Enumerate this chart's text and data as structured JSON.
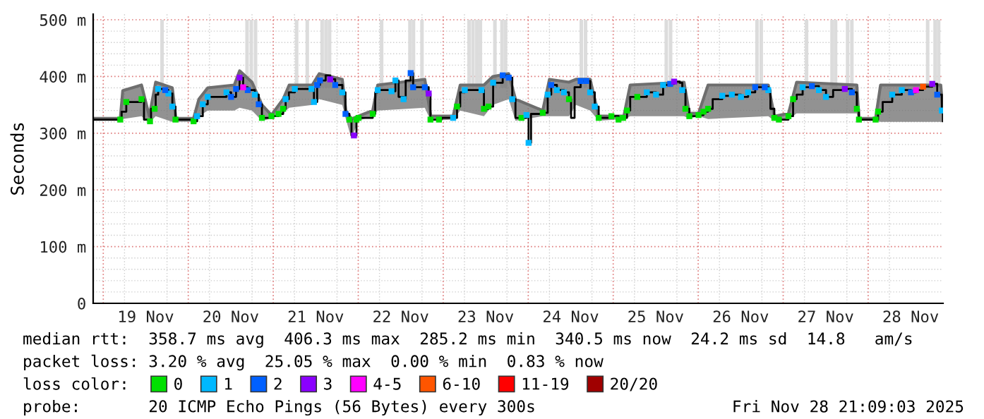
{
  "chart_data": {
    "type": "step",
    "ylabel": "Seconds",
    "legend_title": "loss color:",
    "legend": "bottom",
    "grid": true,
    "line_style": "solid",
    "xlim": [
      "2025-11-18T21:09",
      "2025-11-28T21:09"
    ],
    "ylim": [
      0,
      510
    ],
    "xticks": [
      {
        "value": "2025-11-19T00:00",
        "label": null
      },
      {
        "value": "2025-11-19T12:00",
        "label": "19 Nov"
      },
      {
        "value": "2025-11-20T00:00",
        "label": null
      },
      {
        "value": "2025-11-20T12:00",
        "label": "20 Nov"
      },
      {
        "value": "2025-11-21T00:00",
        "label": null
      },
      {
        "value": "2025-11-21T12:00",
        "label": "21 Nov"
      },
      {
        "value": "2025-11-22T00:00",
        "label": null
      },
      {
        "value": "2025-11-22T12:00",
        "label": "22 Nov"
      },
      {
        "value": "2025-11-23T00:00",
        "label": null
      },
      {
        "value": "2025-11-23T12:00",
        "label": "23 Nov"
      },
      {
        "value": "2025-11-24T00:00",
        "label": null
      },
      {
        "value": "2025-11-24T12:00",
        "label": "24 Nov"
      },
      {
        "value": "2025-11-25T00:00",
        "label": null
      },
      {
        "value": "2025-11-25T12:00",
        "label": "25 Nov"
      },
      {
        "value": "2025-11-26T00:00",
        "label": null
      },
      {
        "value": "2025-11-26T12:00",
        "label": "26 Nov"
      },
      {
        "value": "2025-11-27T00:00",
        "label": null
      },
      {
        "value": "2025-11-27T12:00",
        "label": "27 Nov"
      },
      {
        "value": "2025-11-28T00:00",
        "label": null
      },
      {
        "value": "2025-11-28T12:00",
        "label": "28 Nov"
      }
    ],
    "yticks": [
      0,
      {
        "value": 100,
        "label": "100 m"
      },
      {
        "value": 200,
        "label": "200 m"
      },
      {
        "value": 300,
        "label": "300 m"
      },
      {
        "value": 400,
        "label": "400 m"
      },
      {
        "value": 500,
        "label": "500 m"
      }
    ],
    "annotations": [
      "median rtt:  358.7 ms avg  406.3 ms max  285.2 ms min  340.5 ms now  24.2 ms sd  14.8   am/s",
      "packet loss: 3.20 % avg  25.05 % max  0.00 % min  0.83 % now",
      "probe:       20 ICMP Echo Pings (56 Bytes) every 300s",
      "Fri Nov 28 21:09:03 2025"
    ],
    "series": [
      {
        "type": "bar",
        "color": "#dcdcdc",
        "x": [
          "2025-11-19T16:36",
          "2025-11-20T16:36",
          "2025-11-20T17:48",
          "2025-11-20T19:00",
          "2025-11-21T06:36",
          "2025-11-21T09:36",
          "2025-11-21T13:48",
          "2025-11-21T14:54",
          "2025-11-21T15:54",
          "2025-11-22T06:36",
          "2025-11-22T14:36",
          "2025-11-22T15:36",
          "2025-11-22T18:00",
          "2025-11-23T07:18",
          "2025-11-23T08:24",
          "2025-11-23T09:30",
          "2025-11-23T10:30",
          "2025-11-23T14:36",
          "2025-11-23T16:36",
          "2025-11-23T17:36",
          "2025-11-24T15:00",
          "2025-11-24T16:12",
          "2025-11-25T15:00",
          "2025-11-25T16:12",
          "2025-11-26T16:36",
          "2025-11-26T17:48",
          "2025-11-27T06:36",
          "2025-11-27T13:48",
          "2025-11-27T14:48",
          "2025-11-27T18:12",
          "2025-11-27T19:24",
          "2025-11-28T16:48",
          "2025-11-28T18:54",
          "2025-11-28T19:54"
        ],
        "base": [
          380,
          380,
          380,
          380,
          380,
          380,
          380,
          380,
          380,
          380,
          380,
          380,
          380,
          380,
          380,
          380,
          380,
          380,
          380,
          380,
          380,
          380,
          380,
          380,
          380,
          380,
          380,
          380,
          380,
          380,
          380,
          380,
          380,
          380
        ],
        "values": [
          120,
          120,
          120,
          120,
          120,
          120,
          120,
          120,
          120,
          120,
          120,
          120,
          120,
          120,
          120,
          120,
          120,
          120,
          120,
          120,
          120,
          120,
          120,
          120,
          120,
          120,
          120,
          120,
          120,
          120,
          120,
          120,
          120,
          120
        ]
      },
      {
        "type": "line",
        "color": "#6e6e6e",
        "x": [
          "2025-11-18T21:09",
          "2025-11-19T04:48",
          "2025-11-19T05:30",
          "2025-11-19T10:48",
          "2025-11-19T13:00",
          "2025-11-19T14:48",
          "2025-11-19T19:30",
          "2025-11-19T20:30",
          "2025-11-20T01:30",
          "2025-11-20T03:00",
          "2025-11-20T05:30",
          "2025-11-20T13:00",
          "2025-11-20T14:30",
          "2025-11-20T18:00",
          "2025-11-20T20:48",
          "2025-11-20T23:30",
          "2025-11-21T02:48",
          "2025-11-21T04:30",
          "2025-11-21T11:00",
          "2025-11-21T13:00",
          "2025-11-21T19:30",
          "2025-11-21T20:30",
          "2025-11-21T22:06",
          "2025-11-22T00:00",
          "2025-11-22T04:06",
          "2025-11-22T05:30",
          "2025-11-22T18:48",
          "2025-11-22T20:30",
          "2025-11-23T02:48",
          "2025-11-23T04:48",
          "2025-11-23T11:30",
          "2025-11-23T14:00",
          "2025-11-23T18:30",
          "2025-11-23T20:24",
          "2025-11-24T04:06",
          "2025-11-24T06:00",
          "2025-11-24T11:30",
          "2025-11-24T13:30",
          "2025-11-24T17:30",
          "2025-11-24T19:54",
          "2025-11-25T03:00",
          "2025-11-25T04:48",
          "2025-11-25T20:00",
          "2025-11-25T21:30",
          "2025-11-26T00:06",
          "2025-11-26T02:48",
          "2025-11-26T19:48",
          "2025-11-26T21:30",
          "2025-11-27T01:30",
          "2025-11-27T03:48",
          "2025-11-27T20:48",
          "2025-11-27T21:24",
          "2025-11-28T02:06",
          "2025-11-28T03:30",
          "2025-11-28T20:30",
          "2025-11-28T21:06"
        ],
        "lower": [
          322,
          322,
          325,
          330,
          318,
          330,
          320,
          320,
          320,
          330,
          340,
          340,
          345,
          340,
          322,
          326,
          335,
          345,
          350,
          360,
          350,
          325,
          290,
          322,
          330,
          340,
          345,
          322,
          324,
          340,
          330,
          350,
          360,
          322,
          330,
          330,
          330,
          350,
          340,
          322,
          325,
          330,
          330,
          326,
          330,
          325,
          330,
          322,
          325,
          335,
          335,
          322,
          322,
          320,
          320,
          320
        ],
        "values": [
          326,
          326,
          375,
          385,
          330,
          390,
          380,
          326,
          326,
          360,
          380,
          385,
          410,
          390,
          350,
          332,
          360,
          385,
          385,
          405,
          395,
          340,
          325,
          330,
          340,
          385,
          395,
          330,
          330,
          385,
          385,
          400,
          405,
          360,
          340,
          395,
          390,
          395,
          395,
          330,
          330,
          385,
          390,
          335,
          335,
          385,
          385,
          330,
          335,
          390,
          385,
          326,
          326,
          385,
          385,
          340
        ],
        "upper": [
          326,
          326,
          375,
          385,
          330,
          390,
          380,
          326,
          326,
          360,
          380,
          385,
          410,
          390,
          350,
          332,
          360,
          385,
          385,
          405,
          395,
          340,
          325,
          330,
          340,
          385,
          395,
          330,
          330,
          385,
          385,
          400,
          405,
          360,
          340,
          395,
          390,
          395,
          395,
          330,
          330,
          385,
          390,
          335,
          335,
          385,
          385,
          330,
          335,
          390,
          385,
          326,
          326,
          385,
          385,
          340
        ]
      },
      {
        "color": "#000000",
        "x": [
          "2025-11-18T21:09",
          "2025-11-19T04:48",
          "2025-11-19T05:12",
          "2025-11-19T06:06",
          "2025-11-19T06:30",
          "2025-11-19T10:48",
          "2025-11-19T11:30",
          "2025-11-19T13:12",
          "2025-11-19T13:30",
          "2025-11-19T14:30",
          "2025-11-19T14:48",
          "2025-11-19T15:30",
          "2025-11-19T17:30",
          "2025-11-19T18:24",
          "2025-11-19T19:30",
          "2025-11-19T20:24",
          "2025-11-20T01:30",
          "2025-11-20T02:30",
          "2025-11-20T04:06",
          "2025-11-20T05:30",
          "2025-11-20T10:48",
          "2025-11-20T12:06",
          "2025-11-20T13:30",
          "2025-11-20T14:30",
          "2025-11-20T15:30",
          "2025-11-20T16:48",
          "2025-11-20T18:48",
          "2025-11-20T19:54",
          "2025-11-20T20:48",
          "2025-11-20T23:30",
          "2025-11-21T01:30",
          "2025-11-21T02:48",
          "2025-11-21T03:30",
          "2025-11-21T04:24",
          "2025-11-21T06:06",
          "2025-11-21T10:48",
          "2025-11-21T11:30",
          "2025-11-21T12:24",
          "2025-11-21T13:12",
          "2025-11-21T14:48",
          "2025-11-21T16:06",
          "2025-11-21T17:30",
          "2025-11-21T19:30",
          "2025-11-21T20:24",
          "2025-11-21T21:30",
          "2025-11-21T22:06",
          "2025-11-21T22:48",
          "2025-11-21T23:30",
          "2025-11-22T00:06",
          "2025-11-22T04:06",
          "2025-11-22T04:48",
          "2025-11-22T05:30",
          "2025-11-22T09:24",
          "2025-11-22T10:30",
          "2025-11-22T11:24",
          "2025-11-22T12:48",
          "2025-11-22T13:24",
          "2025-11-22T14:48",
          "2025-11-22T15:30",
          "2025-11-22T18:48",
          "2025-11-22T19:54",
          "2025-11-22T20:24",
          "2025-11-22T22:48",
          "2025-11-22T23:30",
          "2025-11-23T02:48",
          "2025-11-23T03:54",
          "2025-11-23T04:48",
          "2025-11-23T06:06",
          "2025-11-23T10:48",
          "2025-11-23T11:30",
          "2025-11-23T12:48",
          "2025-11-23T14:06",
          "2025-11-23T16:06",
          "2025-11-23T16:48",
          "2025-11-23T18:30",
          "2025-11-23T19:30",
          "2025-11-23T20:24",
          "2025-11-23T22:06",
          "2025-11-23T23:30",
          "2025-11-24T00:06",
          "2025-11-24T00:48",
          "2025-11-24T04:06",
          "2025-11-24T05:30",
          "2025-11-24T06:30",
          "2025-11-24T08:06",
          "2025-11-24T10:06",
          "2025-11-24T11:30",
          "2025-11-24T12:06",
          "2025-11-24T13:06",
          "2025-11-24T14:48",
          "2025-11-24T16:24",
          "2025-11-24T17:30",
          "2025-11-24T18:48",
          "2025-11-24T19:54",
          "2025-11-24T23:30",
          "2025-11-25T01:30",
          "2025-11-25T02:48",
          "2025-11-25T03:54",
          "2025-11-25T04:48",
          "2025-11-25T06:48",
          "2025-11-25T09:30",
          "2025-11-25T12:06",
          "2025-11-25T14:06",
          "2025-11-25T16:06",
          "2025-11-25T17:12",
          "2025-11-25T18:48",
          "2025-11-25T19:30",
          "2025-11-25T20:24",
          "2025-11-25T21:30",
          "2025-11-26T00:06",
          "2025-11-26T01:30",
          "2025-11-26T02:48",
          "2025-11-26T04:06",
          "2025-11-26T06:48",
          "2025-11-26T09:30",
          "2025-11-26T12:06",
          "2025-11-26T14:06",
          "2025-11-26T16:06",
          "2025-11-26T18:48",
          "2025-11-26T19:48",
          "2025-11-26T20:24",
          "2025-11-26T21:30",
          "2025-11-26T22:48",
          "2025-11-27T01:30",
          "2025-11-27T02:48",
          "2025-11-27T03:48",
          "2025-11-27T05:30",
          "2025-11-27T08:06",
          "2025-11-27T10:06",
          "2025-11-27T12:06",
          "2025-11-27T14:06",
          "2025-11-27T17:24",
          "2025-11-27T19:24",
          "2025-11-27T20:48",
          "2025-11-27T21:24",
          "2025-11-28T02:06",
          "2025-11-28T02:48",
          "2025-11-28T04:06",
          "2025-11-28T06:48",
          "2025-11-28T09:30",
          "2025-11-28T12:06",
          "2025-11-28T13:30",
          "2025-11-28T15:30",
          "2025-11-28T18:06",
          "2025-11-28T19:30",
          "2025-11-28T20:48",
          "2025-11-28T21:06"
        ],
        "values": [
          324,
          324,
          338,
          338,
          355,
          360,
          324,
          321,
          343,
          343,
          368,
          378,
          376,
          370,
          347,
          324,
          321,
          330,
          351,
          364,
          372,
          364,
          378,
          398,
          381,
          376,
          368,
          351,
          327,
          330,
          334,
          343,
          360,
          372,
          378,
          378,
          355,
          385,
          393,
          402,
          395,
          385,
          372,
          334,
          324,
          296,
          296,
          324,
          327,
          334,
          372,
          376,
          374,
          393,
          364,
          360,
          393,
          406,
          381,
          381,
          370,
          324,
          324,
          327,
          327,
          347,
          372,
          376,
          376,
          343,
          347,
          389,
          389,
          402,
          398,
          360,
          327,
          327,
          332,
          283,
          334,
          336,
          368,
          385,
          376,
          372,
          360,
          327,
          381,
          392,
          392,
          372,
          347,
          327,
          330,
          324,
          327,
          340,
          364,
          364,
          372,
          368,
          385,
          387,
          391,
          389,
          376,
          343,
          330,
          332,
          338,
          343,
          360,
          366,
          368,
          364,
          372,
          381,
          381,
          376,
          343,
          327,
          324,
          330,
          360,
          368,
          381,
          383,
          376,
          364,
          376,
          378,
          372,
          343,
          324,
          324,
          338,
          355,
          368,
          376,
          372,
          376,
          382,
          387,
          368,
          340,
          321
        ]
      },
      {
        "type": "scatter",
        "name": "0",
        "color": "#00e000",
        "marker": "square",
        "x": [
          "2025-11-19T04:48",
          "2025-11-19T06:30",
          "2025-11-19T10:48",
          "2025-11-19T13:12",
          "2025-11-19T14:30",
          "2025-11-19T20:24",
          "2025-11-20T01:30",
          "2025-11-20T20:48",
          "2025-11-20T23:30",
          "2025-11-21T01:30",
          "2025-11-21T02:48",
          "2025-11-21T21:30",
          "2025-11-21T23:30",
          "2025-11-22T00:06",
          "2025-11-22T04:06",
          "2025-11-22T20:24",
          "2025-11-22T22:48",
          "2025-11-23T03:54",
          "2025-11-23T11:30",
          "2025-11-23T12:48",
          "2025-11-23T22:06",
          "2025-11-24T04:06",
          "2025-11-24T11:30",
          "2025-11-24T19:54",
          "2025-11-24T23:30",
          "2025-11-25T01:30",
          "2025-11-25T02:48",
          "2025-11-25T03:54",
          "2025-11-25T06:48",
          "2025-11-25T20:24",
          "2025-11-25T21:30",
          "2025-11-26T00:06",
          "2025-11-26T01:30",
          "2025-11-26T02:48",
          "2025-11-26T21:30",
          "2025-11-26T22:48",
          "2025-11-27T01:30",
          "2025-11-27T02:48",
          "2025-11-27T20:48",
          "2025-11-27T21:24",
          "2025-11-28T02:06",
          "2025-11-28T02:48"
        ],
        "values": [
          324,
          355,
          360,
          321,
          343,
          324,
          321,
          327,
          330,
          334,
          343,
          324,
          324,
          327,
          334,
          324,
          324,
          347,
          343,
          347,
          327,
          336,
          360,
          327,
          330,
          324,
          327,
          340,
          364,
          343,
          330,
          332,
          338,
          343,
          327,
          324,
          330,
          360,
          343,
          324,
          324,
          338
        ]
      },
      {
        "type": "scatter",
        "name": "1",
        "color": "#00b8ff",
        "marker": "square",
        "x": [
          "2025-11-19T15:30",
          "2025-11-19T18:24",
          "2025-11-19T19:30",
          "2025-11-20T02:30",
          "2025-11-20T04:06",
          "2025-11-20T05:30",
          "2025-11-20T10:48",
          "2025-11-20T18:48",
          "2025-11-21T03:30",
          "2025-11-21T06:06",
          "2025-11-21T10:48",
          "2025-11-21T11:30",
          "2025-11-21T19:30",
          "2025-11-22T05:30",
          "2025-11-22T09:24",
          "2025-11-22T10:30",
          "2025-11-22T12:48",
          "2025-11-23T02:48",
          "2025-11-23T06:06",
          "2025-11-23T10:48",
          "2025-11-23T14:06",
          "2025-11-23T19:30",
          "2025-11-23T23:30",
          "2025-11-24T00:06",
          "2025-11-24T05:30",
          "2025-11-24T08:06",
          "2025-11-24T10:06",
          "2025-11-24T17:30",
          "2025-11-24T18:48",
          "2025-11-25T09:30",
          "2025-11-25T12:06",
          "2025-11-25T14:06",
          "2025-11-25T19:30",
          "2025-11-26T06:48",
          "2025-11-26T09:30",
          "2025-11-26T12:06",
          "2025-11-26T14:06",
          "2025-11-26T19:48",
          "2025-11-27T05:30",
          "2025-11-27T10:06",
          "2025-11-27T12:06",
          "2025-11-28T06:48",
          "2025-11-28T09:30",
          "2025-11-28T20:48"
        ],
        "values": [
          378,
          370,
          347,
          330,
          351,
          364,
          372,
          368,
          360,
          378,
          378,
          355,
          372,
          376,
          374,
          393,
          360,
          327,
          376,
          376,
          389,
          360,
          332,
          283,
          368,
          376,
          372,
          372,
          347,
          372,
          368,
          385,
          376,
          366,
          368,
          364,
          372,
          376,
          381,
          376,
          364,
          368,
          376,
          340
        ]
      },
      {
        "type": "scatter",
        "name": "2",
        "color": "#0060ff",
        "marker": "square",
        "x": [
          "2025-11-19T17:30",
          "2025-11-20T12:06",
          "2025-11-20T13:30",
          "2025-11-20T16:48",
          "2025-11-20T19:54",
          "2025-11-21T12:24",
          "2025-11-21T13:12",
          "2025-11-21T17:30",
          "2025-11-21T20:24",
          "2025-11-22T14:48",
          "2025-11-22T15:30",
          "2025-11-22T18:48",
          "2025-11-23T16:48",
          "2025-11-23T18:30",
          "2025-11-24T06:30",
          "2025-11-24T14:48",
          "2025-11-24T16:24",
          "2025-11-25T16:06",
          "2025-11-26T16:06",
          "2025-11-26T18:48",
          "2025-11-27T08:06",
          "2025-11-27T19:24",
          "2025-11-28T12:06",
          "2025-11-28T19:30"
        ],
        "values": [
          376,
          364,
          378,
          376,
          351,
          385,
          393,
          385,
          334,
          406,
          381,
          381,
          402,
          398,
          385,
          392,
          392,
          387,
          381,
          381,
          383,
          372,
          372,
          368
        ]
      },
      {
        "type": "scatter",
        "name": "3",
        "color": "#8a00ff",
        "marker": "square",
        "x": [
          "2025-11-20T14:30",
          "2025-11-21T16:06",
          "2025-11-21T22:48",
          "2025-11-22T19:54",
          "2025-11-25T17:12",
          "2025-11-27T17:24",
          "2025-11-28T18:06"
        ],
        "values": [
          398,
          395,
          296,
          370,
          391,
          378,
          387
        ]
      },
      {
        "type": "scatter",
        "name": "4-5",
        "color": "#ff00ff",
        "marker": "square",
        "x": [
          "2025-11-20T15:30",
          "2025-11-28T13:30"
        ],
        "values": [
          381,
          376
        ]
      },
      {
        "type": "scatter",
        "name": "6-10",
        "color": "#ff5500",
        "marker": "square",
        "x": [
          "2025-11-28T15:30"
        ],
        "values": [
          382
        ]
      },
      {
        "type": "scatter",
        "name": "11-19",
        "color": "#ff0000",
        "marker": "square"
      },
      {
        "type": "scatter",
        "name": "20/20",
        "color": "#a00000",
        "marker": "square"
      }
    ]
  }
}
